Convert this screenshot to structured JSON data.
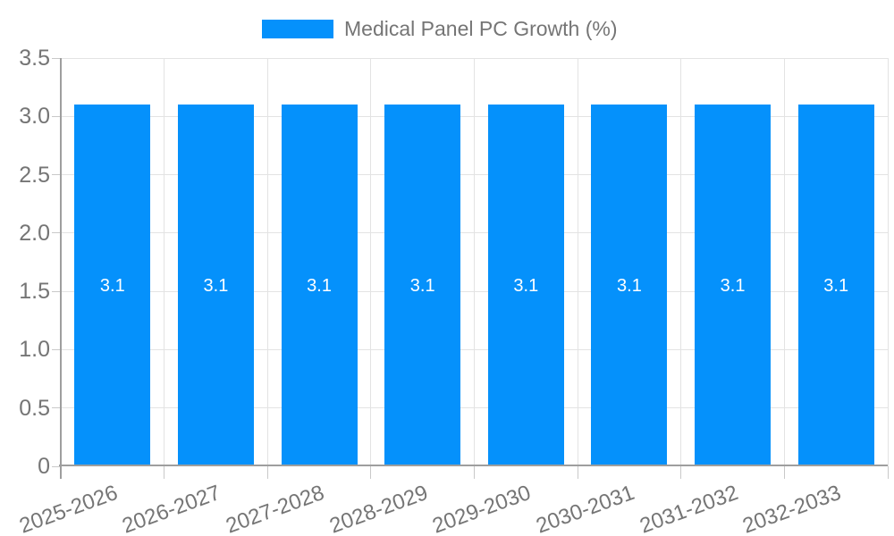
{
  "legend": {
    "label": "Medical Panel PC Growth (%)"
  },
  "colors": {
    "bar": "#0591FB",
    "grid": "#E3E3E3",
    "axis": "#9E9E9E",
    "tick": "#C9C9C9",
    "axis_label": "#757575",
    "value_label": "#FFFFFF",
    "background": "#FFFFFF"
  },
  "chart_data": {
    "type": "bar",
    "title": "Medical Panel PC Growth (%)",
    "categories": [
      "2025-2026",
      "2026-2027",
      "2027-2028",
      "2028-2029",
      "2029-2030",
      "2030-2031",
      "2031-2032",
      "2032-2033"
    ],
    "values": [
      3.1,
      3.1,
      3.1,
      3.1,
      3.1,
      3.1,
      3.1,
      3.1
    ],
    "value_labels": [
      "3.1",
      "3.1",
      "3.1",
      "3.1",
      "3.1",
      "3.1",
      "3.1",
      "3.1"
    ],
    "xlabel": "",
    "ylabel": "",
    "ylim": [
      0,
      3.5
    ],
    "yticks": [
      0,
      0.5,
      1,
      1.5,
      2,
      2.5,
      3,
      3.5
    ],
    "ytick_labels": [
      "0",
      "0.5",
      "1.0",
      "1.5",
      "2.0",
      "2.5",
      "3.0",
      "3.5"
    ],
    "grid": true,
    "legend_position": "top",
    "legend_entries": [
      "Medical Panel PC Growth (%)"
    ],
    "value_label_position": "center"
  }
}
